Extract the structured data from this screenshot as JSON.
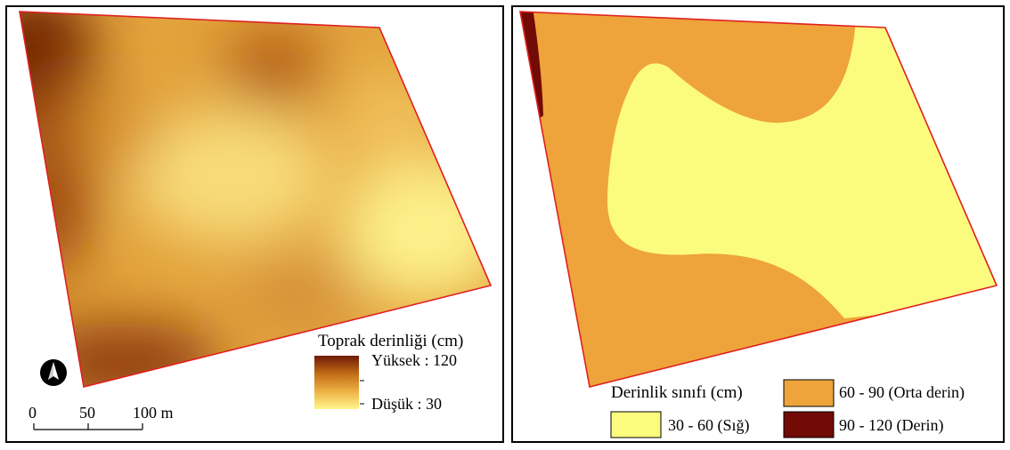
{
  "left_map": {
    "legend": {
      "title": "Toprak derinliği (cm)",
      "high_label": "Yüksek : 120",
      "low_label": "Düşük : 30",
      "high_value": 120,
      "low_value": 30,
      "gradient_colors": [
        "#6e1a05",
        "#c46f18",
        "#ecae40",
        "#fff68c"
      ]
    },
    "scale_bar": {
      "ticks": [
        "0",
        "50",
        "100 m"
      ]
    },
    "north_arrow_icon": "north-arrow-icon",
    "boundary_color": "#e02020"
  },
  "right_map": {
    "legend": {
      "title": "Derinlik sınıfı (cm)",
      "classes": [
        {
          "label": "60 - 90 (Orta derin)",
          "color": "#eea43a"
        },
        {
          "label": "30 - 60 (Sığ)",
          "color": "#fbfb7e"
        },
        {
          "label": "90 - 120 (Derin)",
          "color": "#720b05"
        }
      ]
    },
    "boundary_color": "#e02020"
  }
}
